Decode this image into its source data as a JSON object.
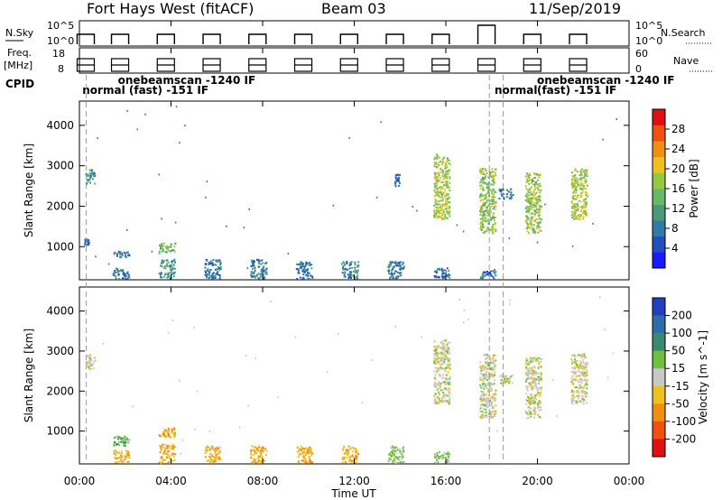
{
  "header": {
    "title": "Fort Hays West (fitACF)",
    "beam": "Beam 03",
    "date": "11/Sep/2019"
  },
  "top_panels": {
    "nsky": {
      "left_label": "N.Sky",
      "left_ticks": [
        "10^5",
        "10^0"
      ],
      "right_label": "N.Search",
      "right_ticks": [
        "10^5",
        "10^0"
      ]
    },
    "freq": {
      "left_label": "Freq.",
      "left_unit": "[MHz]",
      "left_ticks": [
        "18",
        "8"
      ],
      "right_label": "Nave",
      "right_ticks": [
        "60",
        "0"
      ]
    },
    "cpid": {
      "label": "CPID",
      "annotations": [
        {
          "text": "onebeamscan -1240 IF",
          "at_hour": 1.6,
          "row": 1
        },
        {
          "text": "normal (fast) -151 IF",
          "at_hour": 0.05,
          "row": 2
        },
        {
          "text": "normal",
          "at_hour": 18.05,
          "row": 2
        },
        {
          "text": "onebeamscan -1240 IF",
          "at_hour": 19.9,
          "row": 1
        },
        {
          "text": "(fast) -151 IF",
          "at_hour": 19.9,
          "row": 2
        }
      ]
    }
  },
  "axes": {
    "x_label": "Time UT",
    "x_ticks": [
      "00:00",
      "04:00",
      "08:00",
      "12:00",
      "16:00",
      "20:00",
      "00:00"
    ],
    "y_label": "Slant Range [km]",
    "y_ticks": [
      "1000",
      "2000",
      "3000",
      "4000"
    ]
  },
  "power_colorbar": {
    "label": "Power [dB]",
    "ticks": [
      "4",
      "8",
      "12",
      "16",
      "20",
      "24",
      "28"
    ],
    "colors": [
      "#1a1aff",
      "#2050c0",
      "#2e7ba8",
      "#4a9a78",
      "#68b868",
      "#98c840",
      "#f0c020",
      "#f09010",
      "#f05010",
      "#e01010"
    ]
  },
  "velocity_colorbar": {
    "label": "Velocity [m s^-1]",
    "ticks": [
      "200",
      "100",
      "50",
      "15",
      "-15",
      "-50",
      "-100",
      "-200"
    ],
    "colors": [
      "#2040c0",
      "#2e6ea8",
      "#3a8a70",
      "#70c040",
      "#c8c8c8",
      "#f0c020",
      "#f09010",
      "#f05010",
      "#e01010"
    ]
  },
  "chart_data": [
    {
      "type": "heatmap",
      "panel": "power",
      "x_unit": "hours UT",
      "y_unit": "slant range km",
      "xlim": [
        0,
        24
      ],
      "ylim": [
        180,
        4600
      ],
      "patches": [
        {
          "t0": 0.25,
          "t1": 0.65,
          "r0": 2550,
          "r1": 2950,
          "value": 10
        },
        {
          "t0": 0.2,
          "t1": 0.4,
          "r0": 1050,
          "r1": 1200,
          "value": 6
        },
        {
          "t0": 1.45,
          "t1": 2.15,
          "r0": 750,
          "r1": 900,
          "value": 7
        },
        {
          "t0": 1.45,
          "t1": 2.15,
          "r0": 220,
          "r1": 480,
          "value": 8
        },
        {
          "t0": 3.45,
          "t1": 4.15,
          "r0": 850,
          "r1": 1100,
          "value": 14
        },
        {
          "t0": 3.45,
          "t1": 4.15,
          "r0": 450,
          "r1": 700,
          "value": 11
        },
        {
          "t0": 3.45,
          "t1": 4.15,
          "r0": 220,
          "r1": 400,
          "value": 9
        },
        {
          "t0": 5.45,
          "t1": 6.15,
          "r0": 220,
          "r1": 700,
          "value": 7
        },
        {
          "t0": 7.45,
          "t1": 8.15,
          "r0": 220,
          "r1": 700,
          "value": 8
        },
        {
          "t0": 9.45,
          "t1": 10.15,
          "r0": 220,
          "r1": 650,
          "value": 7
        },
        {
          "t0": 11.45,
          "t1": 12.15,
          "r0": 220,
          "r1": 650,
          "value": 8
        },
        {
          "t0": 13.45,
          "t1": 14.15,
          "r0": 220,
          "r1": 650,
          "value": 7
        },
        {
          "t0": 13.75,
          "t1": 13.95,
          "r0": 2500,
          "r1": 2800,
          "value": 6
        },
        {
          "t0": 15.45,
          "t1": 16.15,
          "r0": 1700,
          "r1": 3300,
          "value": 18
        },
        {
          "t0": 15.45,
          "t1": 16.15,
          "r0": 220,
          "r1": 500,
          "value": 6
        },
        {
          "t0": 17.45,
          "t1": 18.15,
          "r0": 1350,
          "r1": 2950,
          "value": 16
        },
        {
          "t0": 17.45,
          "t1": 18.15,
          "r0": 220,
          "r1": 450,
          "value": 6
        },
        {
          "t0": 18.3,
          "t1": 18.9,
          "r0": 2200,
          "r1": 2450,
          "value": 8
        },
        {
          "t0": 19.45,
          "t1": 20.15,
          "r0": 1350,
          "r1": 2850,
          "value": 17
        },
        {
          "t0": 21.45,
          "t1": 22.15,
          "r0": 1700,
          "r1": 2950,
          "value": 18
        }
      ]
    },
    {
      "type": "heatmap",
      "panel": "velocity",
      "x_unit": "hours UT",
      "y_unit": "slant range km",
      "xlim": [
        0,
        24
      ],
      "ylim": [
        180,
        4600
      ],
      "patches": [
        {
          "t0": 0.25,
          "t1": 0.65,
          "r0": 2550,
          "r1": 2950,
          "value": 0
        },
        {
          "t0": 1.45,
          "t1": 2.15,
          "r0": 650,
          "r1": 900,
          "value": 40
        },
        {
          "t0": 1.45,
          "t1": 2.15,
          "r0": 220,
          "r1": 550,
          "value": -40
        },
        {
          "t0": 3.45,
          "t1": 4.15,
          "r0": 850,
          "r1": 1100,
          "value": -60
        },
        {
          "t0": 3.45,
          "t1": 4.15,
          "r0": 420,
          "r1": 700,
          "value": -45
        },
        {
          "t0": 3.45,
          "t1": 4.15,
          "r0": 220,
          "r1": 400,
          "value": -40
        },
        {
          "t0": 5.45,
          "t1": 6.15,
          "r0": 220,
          "r1": 650,
          "value": -40
        },
        {
          "t0": 7.45,
          "t1": 8.15,
          "r0": 220,
          "r1": 650,
          "value": -45
        },
        {
          "t0": 9.45,
          "t1": 10.15,
          "r0": 220,
          "r1": 650,
          "value": -50
        },
        {
          "t0": 11.45,
          "t1": 12.15,
          "r0": 220,
          "r1": 650,
          "value": -45
        },
        {
          "t0": 13.45,
          "t1": 14.15,
          "r0": 220,
          "r1": 650,
          "value": 20
        },
        {
          "t0": 15.45,
          "t1": 16.15,
          "r0": 1700,
          "r1": 3300,
          "value": 0
        },
        {
          "t0": 15.45,
          "t1": 16.15,
          "r0": 220,
          "r1": 500,
          "value": 20
        },
        {
          "t0": 17.45,
          "t1": 18.15,
          "r0": 1350,
          "r1": 2950,
          "value": 0
        },
        {
          "t0": 18.3,
          "t1": 18.9,
          "r0": 2200,
          "r1": 2450,
          "value": 0
        },
        {
          "t0": 19.45,
          "t1": 20.15,
          "r0": 1350,
          "r1": 2850,
          "value": 0
        },
        {
          "t0": 21.45,
          "t1": 22.15,
          "r0": 1700,
          "r1": 2950,
          "value": 0
        }
      ]
    }
  ]
}
